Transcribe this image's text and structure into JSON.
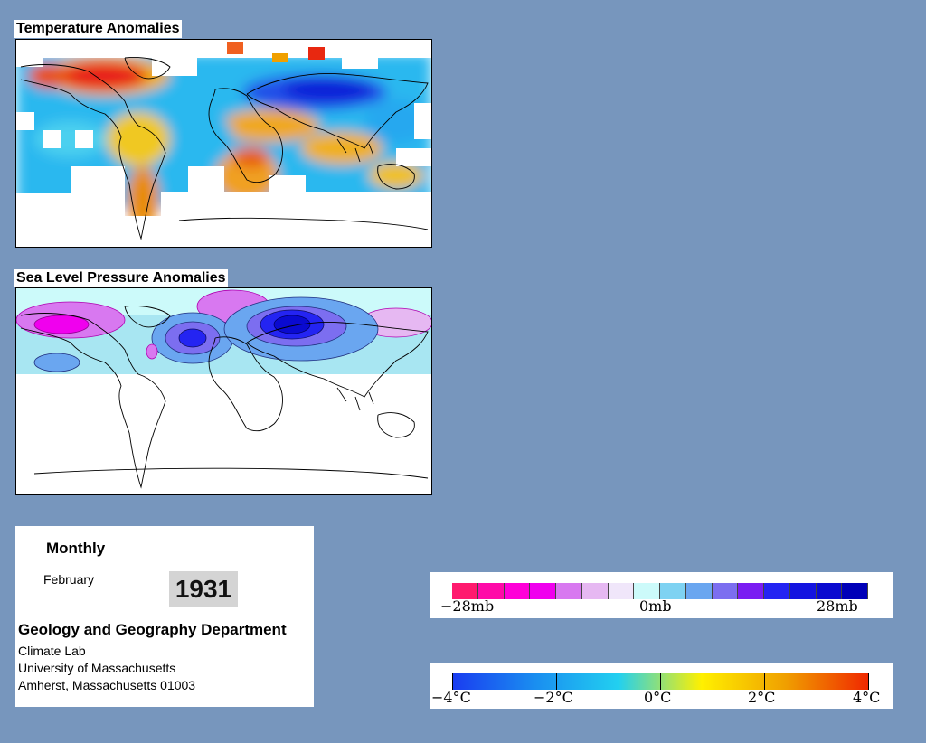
{
  "temperature_panel": {
    "title": "Temperature Anomalies"
  },
  "pressure_panel": {
    "title": "Sea Level Pressure Anomalies"
  },
  "info": {
    "period": "Monthly",
    "month": "February",
    "year": "1931",
    "department": "Geology and Geography Department",
    "lab": "Climate Lab",
    "university": "University of Massachusetts",
    "address": "Amherst, Massachusetts 01003"
  },
  "pressure_legend": {
    "labels": [
      "−28mb",
      "0mb",
      "28mb"
    ],
    "colors": [
      "#ff1a6e",
      "#ff0aa8",
      "#ff00d8",
      "#f000ee",
      "#d878f0",
      "#e6b8f2",
      "#f0e6fa",
      "#ccfafa",
      "#7ed2f2",
      "#6aa6f0",
      "#7c6ef0",
      "#7a1cf2",
      "#2424f2",
      "#1414e0",
      "#0a0ad0",
      "#0000b8"
    ]
  },
  "temperature_legend": {
    "labels": [
      "−4°C",
      "−2°C",
      "0°C",
      "2°C",
      "4°C"
    ],
    "colors": [
      "#1a3cf0",
      "#1a8ef0",
      "#22d0f0",
      "#fff000",
      "#f0a000",
      "#f02800"
    ]
  },
  "colors": {
    "background": "#7796bd",
    "warm": "#e8231a",
    "cold": "#2030e0"
  }
}
